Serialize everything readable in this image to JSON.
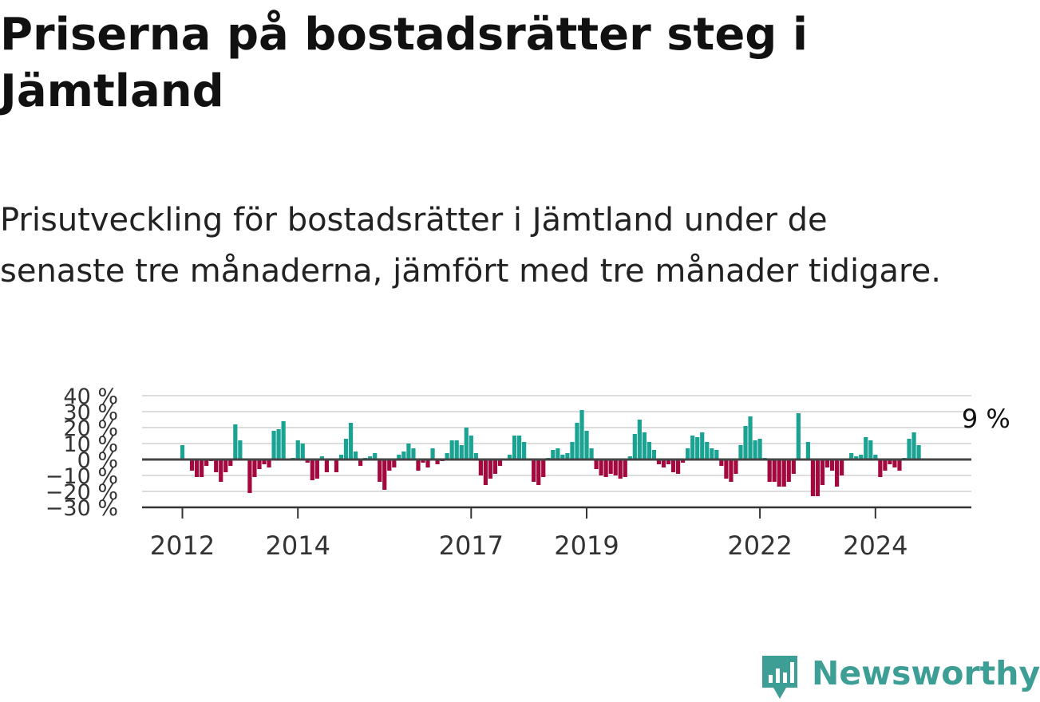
{
  "title": "Priserna på bostadsrätter steg i Jämtland",
  "subtitle": "Prisutveckling för bostadsrätter i Jämtland under de senaste tre månaderna, jämfört med tre månader tidigare.",
  "brand": {
    "name": "Newsworthy",
    "icon": "newsworthy-logo-icon"
  },
  "colors": {
    "positive": "#1aa393",
    "negative": "#a3083e",
    "zero_line": "#444444",
    "grid": "#dddddd",
    "axis": "#333333",
    "brand": "#3d9e95"
  },
  "chart_data": {
    "type": "bar",
    "title": "Priserna på bostadsrätter steg i Jämtland",
    "ylabel": "",
    "xlabel": "",
    "ylim": [
      -30,
      40
    ],
    "yticks": [
      40,
      30,
      20,
      10,
      0,
      -10,
      -20,
      -30
    ],
    "ytick_labels": [
      "40 %",
      "30 %",
      "20 %",
      "10 %",
      "0 %",
      "−10 %",
      "−20 %",
      "−30 %"
    ],
    "xticks": [
      {
        "label": "2012",
        "x": "2012-01"
      },
      {
        "label": "2014",
        "x": "2014-01"
      },
      {
        "label": "2017",
        "x": "2017-01"
      },
      {
        "label": "2019",
        "x": "2019-01"
      },
      {
        "label": "2022",
        "x": "2022-01"
      },
      {
        "label": "2024",
        "x": "2024-01"
      }
    ],
    "x_start": "2012-01",
    "unit": "%",
    "annotation": {
      "text": "9 %",
      "x": "2025-07",
      "value": 9
    },
    "values": [
      9,
      0,
      -7,
      -11,
      -11,
      -4,
      -1,
      -8,
      -14,
      -8,
      -4,
      22,
      12,
      0,
      -21,
      -11,
      -6,
      -3,
      -5,
      18,
      19,
      24,
      0,
      1,
      12,
      10,
      -2,
      -13,
      -12,
      2,
      -8,
      0,
      -8,
      3,
      13,
      23,
      5,
      -4,
      1,
      2,
      4,
      -14,
      -19,
      -7,
      -5,
      3,
      5,
      10,
      7,
      -7,
      -2,
      -5,
      7,
      -3,
      -1,
      4,
      12,
      12,
      9,
      20,
      15,
      4,
      -10,
      -16,
      -12,
      -9,
      -4,
      0,
      3,
      15,
      15,
      11,
      0,
      -14,
      -16,
      -11,
      1,
      6,
      7,
      3,
      4,
      11,
      23,
      31,
      18,
      7,
      -6,
      -10,
      -11,
      -9,
      -10,
      -12,
      -11,
      2,
      16,
      25,
      17,
      11,
      6,
      -3,
      -5,
      -3,
      -8,
      -9,
      -2,
      7,
      15,
      14,
      17,
      11,
      7,
      6,
      -4,
      -12,
      -14,
      -9,
      9,
      21,
      27,
      12,
      13,
      1,
      -14,
      -14,
      -17,
      -17,
      -14,
      -9,
      29,
      0,
      11,
      -23,
      -23,
      -16,
      -5,
      -7,
      -17,
      -10,
      0,
      4,
      2,
      3,
      14,
      12,
      3,
      -11,
      -7,
      -3,
      -5,
      -7,
      1,
      13,
      17,
      9
    ]
  }
}
